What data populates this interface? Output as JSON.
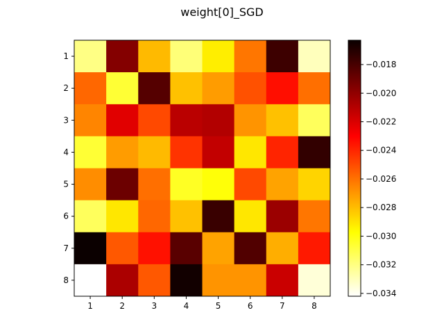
{
  "chart_data": {
    "type": "heatmap",
    "title": "weight[0]_SGD",
    "xlabel": "",
    "ylabel": "",
    "x_categories": [
      "1",
      "2",
      "3",
      "4",
      "5",
      "6",
      "7",
      "8"
    ],
    "y_categories": [
      "1",
      "2",
      "3",
      "4",
      "5",
      "6",
      "7",
      "8"
    ],
    "colormap": "hot",
    "vmin": -0.0342,
    "vmax": -0.0163,
    "colorbar_ticks": [
      -0.018,
      -0.02,
      -0.022,
      -0.024,
      -0.026,
      -0.028,
      -0.03,
      -0.032,
      -0.034
    ],
    "colorbar_tick_labels": [
      "−0.018",
      "−0.020",
      "−0.022",
      "−0.024",
      "−0.026",
      "−0.028",
      "−0.030",
      "−0.032",
      "−0.034"
    ],
    "values": [
      [
        -0.032,
        -0.0194,
        -0.0278,
        -0.0318,
        -0.0292,
        -0.026,
        -0.0176,
        -0.033
      ],
      [
        -0.0256,
        -0.0306,
        -0.0182,
        -0.028,
        -0.027,
        -0.025,
        -0.0232,
        -0.0258
      ],
      [
        -0.0264,
        -0.0218,
        -0.0248,
        -0.0208,
        -0.0206,
        -0.0268,
        -0.028,
        -0.0313
      ],
      [
        -0.0306,
        -0.027,
        -0.0278,
        -0.0242,
        -0.021,
        -0.029,
        -0.0238,
        -0.0173
      ],
      [
        -0.0266,
        -0.0188,
        -0.0258,
        -0.0303,
        -0.0298,
        -0.0248,
        -0.0272,
        -0.0285
      ],
      [
        -0.0313,
        -0.029,
        -0.0256,
        -0.028,
        -0.0175,
        -0.029,
        -0.02,
        -0.026
      ],
      [
        -0.0163,
        -0.0252,
        -0.0233,
        -0.0183,
        -0.0272,
        -0.0181,
        -0.0275,
        -0.0235
      ],
      [
        -0.0342,
        -0.0204,
        -0.0252,
        -0.0165,
        -0.0268,
        -0.0268,
        -0.0212,
        -0.0335
      ]
    ]
  }
}
